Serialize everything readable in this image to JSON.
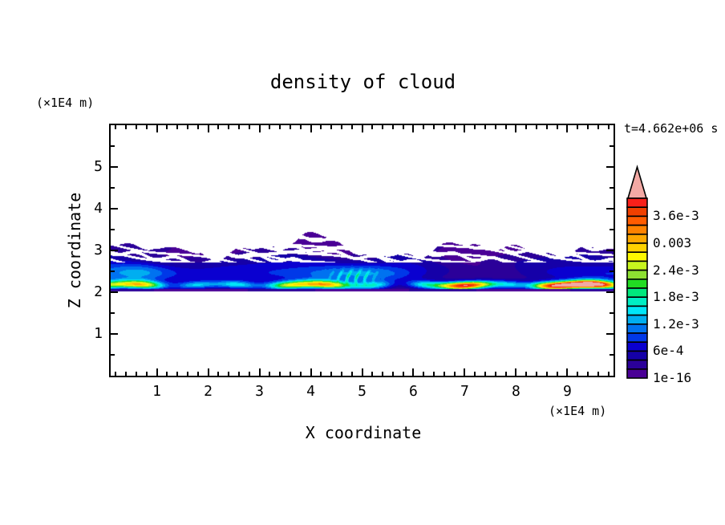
{
  "title": "density of cloud",
  "time_label": "t=4.662e+06 s",
  "x_axis": {
    "title": "X coordinate",
    "unit": "(×1E4 m)",
    "ticks": [
      1,
      2,
      3,
      4,
      5,
      6,
      7,
      8,
      9
    ],
    "minor_step": 0.2,
    "range": [
      0.1,
      9.9
    ]
  },
  "y_axis": {
    "title": "Z coordinate",
    "unit": "(×1E4 m)",
    "ticks": [
      1,
      2,
      3,
      4,
      5
    ],
    "minor_step": 0.5,
    "range": [
      0,
      6
    ]
  },
  "colorbar": {
    "labels": [
      {
        "text": "1e-16",
        "boundary": 0
      },
      {
        "text": "6e-4",
        "boundary": 3
      },
      {
        "text": "1.2e-3",
        "boundary": 6
      },
      {
        "text": "1.8e-3",
        "boundary": 9
      },
      {
        "text": "2.4e-3",
        "boundary": 12
      },
      {
        "text": "0.003",
        "boundary": 15
      },
      {
        "text": "3.6e-3",
        "boundary": 18
      }
    ],
    "colors_low_to_high": [
      "#4A0096",
      "#2B0099",
      "#1500A8",
      "#0A00D0",
      "#0038E8",
      "#0072F0",
      "#00AEF0",
      "#00E5F8",
      "#00EEC4",
      "#00E87D",
      "#22DB22",
      "#8DE032",
      "#C8F51E",
      "#FDF800",
      "#FFD200",
      "#FFA800",
      "#FF8200",
      "#FF5C00",
      "#F04000",
      "#F8201A"
    ],
    "overflow_color": "#F3A9A4",
    "frame_color": "#000000"
  },
  "chart_data": {
    "type": "heatmap",
    "title": "density of cloud",
    "xlabel": "X coordinate",
    "ylabel": "Z coordinate",
    "x_unit": "(×1E4 m)",
    "y_unit": "(×1E4 m)",
    "time_annotation": "t=4.662e+06 s",
    "xlim": [
      0.1,
      9.9
    ],
    "ylim": [
      0,
      6
    ],
    "x_ticks": [
      1,
      2,
      3,
      4,
      5,
      6,
      7,
      8,
      9
    ],
    "y_ticks": [
      1,
      2,
      3,
      4,
      5
    ],
    "x_minor_step": 0.2,
    "y_minor_step": 0.5,
    "grid": false,
    "legend_position": "right-colorbar-with-overflow-arrow",
    "levels": {
      "min_label": "1e-16",
      "bin_step": 0.0002,
      "n_bins": 20,
      "overflow_above": 0.004
    },
    "field": {
      "description": "horizontal cloud deck spanning full x range; ragged purple top near z=3.0-3.3 with white gaps, blue mid layer z=2.3-2.8, thin bright high-density stripe near z=2.1-2.3, thin dark base line at z=2.0, clear white air elsewhere",
      "band_bottom_z": 2.02,
      "band_top_mean_z": 3.05,
      "band_top_variation": 0.25,
      "bright_layer_center_z": 2.17,
      "bright_layer_sigma_z": 0.095,
      "base_intensity": 0.00013,
      "stripe_base_amp": 0.00105,
      "mid_layer_center_z": 2.45,
      "mid_layer_amp": 0.00055,
      "hotspots": [
        {
          "x": 0.55,
          "w": 0.5,
          "amp": 0.0013
        },
        {
          "x": 3.9,
          "w": 0.6,
          "amp": 0.0019
        },
        {
          "x": 7.05,
          "w": 0.6,
          "amp": 0.0023
        },
        {
          "x": 8.6,
          "w": 0.35,
          "amp": 0.0012
        },
        {
          "x": 9.35,
          "w": 0.6,
          "amp": 0.0038
        }
      ]
    }
  }
}
